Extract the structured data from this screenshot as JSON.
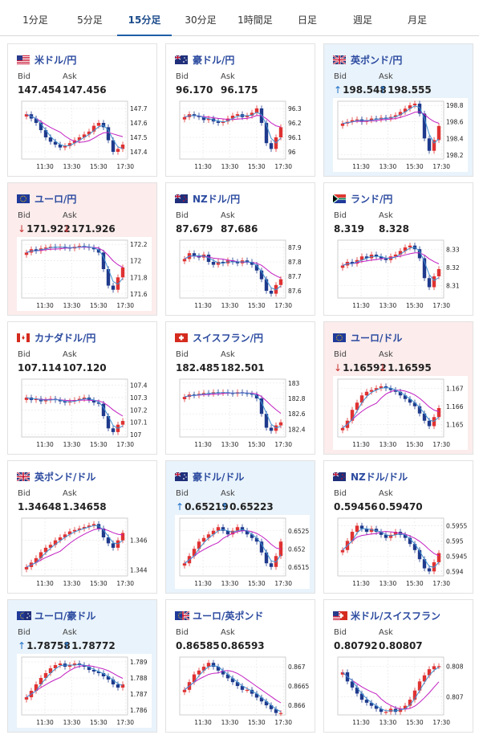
{
  "tabs": [
    {
      "label": "1分足",
      "active": false
    },
    {
      "label": "5分足",
      "active": false
    },
    {
      "label": "15分足",
      "active": true
    },
    {
      "label": "30分足",
      "active": false
    },
    {
      "label": "1時間足",
      "active": false
    },
    {
      "label": "日足",
      "active": false
    },
    {
      "label": "週足",
      "active": false
    },
    {
      "label": "月足",
      "active": false
    }
  ],
  "labels": {
    "bid": "Bid",
    "ask": "Ask"
  },
  "colors": {
    "up_candle": "#e03232",
    "down_candle": "#1f3a8c",
    "ma_short": "#3f8fd0",
    "ma_long": "#c21fc2",
    "arrow_up": "#1e6fc8",
    "arrow_down": "#c83232",
    "up_card_bg": "#e9f3fb",
    "down_card_bg": "#fcecec"
  },
  "cards": [
    {
      "pair": "米ドル/円",
      "flag": "us",
      "bid": "147.454",
      "ask": "147.456",
      "trend": "none",
      "chart_data": {
        "type": "candlestick",
        "x_ticks": [
          "11:30",
          "13:30",
          "15:30",
          "17:30"
        ],
        "y_ticks": [
          "147.7",
          "147.6",
          "147.5",
          "147.4"
        ],
        "ylim": [
          147.35,
          147.75
        ],
        "close": [
          147.66,
          147.63,
          147.6,
          147.55,
          147.5,
          147.47,
          147.45,
          147.43,
          147.44,
          147.46,
          147.48,
          147.5,
          147.52,
          147.54,
          147.58,
          147.6,
          147.57,
          147.48,
          147.4,
          147.42,
          147.45
        ]
      }
    },
    {
      "pair": "豪ドル/円",
      "flag": "au",
      "bid": "96.170",
      "ask": "96.175",
      "trend": "none",
      "chart_data": {
        "type": "candlestick",
        "x_ticks": [
          "11:30",
          "13:30",
          "15:30",
          "17:30"
        ],
        "y_ticks": [
          "96.3",
          "96.2",
          "96.1",
          "96"
        ],
        "ylim": [
          95.95,
          96.35
        ],
        "close": [
          96.24,
          96.26,
          96.25,
          96.24,
          96.22,
          96.23,
          96.21,
          96.2,
          96.21,
          96.23,
          96.25,
          96.26,
          96.24,
          96.25,
          96.27,
          96.3,
          96.2,
          96.06,
          96.02,
          96.1,
          96.17
        ]
      }
    },
    {
      "pair": "英ポンド/円",
      "flag": "uk",
      "bid": "198.548",
      "ask": "198.555",
      "trend": "up",
      "chart_data": {
        "type": "candlestick",
        "x_ticks": [
          "11:30",
          "13:30",
          "15:30",
          "17:30"
        ],
        "y_ticks": [
          "198.8",
          "198.6",
          "198.4",
          "198.2"
        ],
        "ylim": [
          198.15,
          198.85
        ],
        "close": [
          198.58,
          198.6,
          198.62,
          198.63,
          198.6,
          198.62,
          198.64,
          198.63,
          198.65,
          198.64,
          198.66,
          198.68,
          198.72,
          198.76,
          198.8,
          198.82,
          198.7,
          198.4,
          198.25,
          198.38,
          198.55
        ]
      }
    },
    {
      "pair": "ユーロ/円",
      "flag": "eu",
      "bid": "171.922",
      "ask": "171.926",
      "trend": "down",
      "chart_data": {
        "type": "candlestick",
        "x_ticks": [
          "11:30",
          "13:30",
          "15:30",
          "17:30"
        ],
        "y_ticks": [
          "172.2",
          "172",
          "171.8",
          "171.6"
        ],
        "ylim": [
          171.55,
          172.25
        ],
        "close": [
          172.1,
          172.14,
          172.12,
          172.15,
          172.16,
          172.17,
          172.16,
          172.17,
          172.16,
          172.15,
          172.17,
          172.18,
          172.17,
          172.16,
          172.14,
          172.1,
          171.9,
          171.7,
          171.65,
          171.8,
          171.92
        ]
      }
    },
    {
      "pair": "NZドル/円",
      "flag": "nz",
      "bid": "87.679",
      "ask": "87.686",
      "trend": "none",
      "chart_data": {
        "type": "candlestick",
        "x_ticks": [
          "11:30",
          "13:30",
          "15:30",
          "17:30"
        ],
        "y_ticks": [
          "87.9",
          "87.8",
          "87.7",
          "87.6"
        ],
        "ylim": [
          87.55,
          87.95
        ],
        "close": [
          87.82,
          87.86,
          87.84,
          87.83,
          87.85,
          87.8,
          87.78,
          87.8,
          87.79,
          87.81,
          87.8,
          87.79,
          87.81,
          87.8,
          87.78,
          87.74,
          87.68,
          87.6,
          87.58,
          87.64,
          87.68
        ]
      }
    },
    {
      "pair": "ランド/円",
      "flag": "za",
      "bid": "8.319",
      "ask": "8.328",
      "trend": "none",
      "chart_data": {
        "type": "candlestick",
        "x_ticks": [
          "11:30",
          "13:30",
          "15:30",
          "17:30"
        ],
        "y_ticks": [
          "8.33",
          "8.32",
          "8.31"
        ],
        "ylim": [
          8.303,
          8.335
        ],
        "close": [
          8.321,
          8.323,
          8.322,
          8.324,
          8.326,
          8.325,
          8.327,
          8.326,
          8.325,
          8.324,
          8.326,
          8.327,
          8.329,
          8.331,
          8.332,
          8.33,
          8.325,
          8.314,
          8.309,
          8.315,
          8.319
        ]
      }
    },
    {
      "pair": "カナダドル/円",
      "flag": "ca",
      "bid": "107.114",
      "ask": "107.120",
      "trend": "none",
      "chart_data": {
        "type": "candlestick",
        "x_ticks": [
          "11:30",
          "13:30",
          "15:30",
          "17:30"
        ],
        "y_ticks": [
          "107.4",
          "107.3",
          "107.2",
          "107.1",
          "107"
        ],
        "ylim": [
          106.98,
          107.45
        ],
        "close": [
          107.3,
          107.28,
          107.29,
          107.27,
          107.28,
          107.29,
          107.28,
          107.27,
          107.26,
          107.27,
          107.28,
          107.29,
          107.3,
          107.28,
          107.26,
          107.25,
          107.15,
          107.05,
          107.02,
          107.08,
          107.11
        ]
      }
    },
    {
      "pair": "スイスフラン/円",
      "flag": "ch",
      "bid": "182.485",
      "ask": "182.501",
      "trend": "none",
      "chart_data": {
        "type": "candlestick",
        "x_ticks": [
          "11:30",
          "13:30",
          "15:30",
          "17:30"
        ],
        "y_ticks": [
          "183",
          "182.8",
          "182.6",
          "182.4"
        ],
        "ylim": [
          182.3,
          183.05
        ],
        "close": [
          182.82,
          182.85,
          182.84,
          182.86,
          182.87,
          182.86,
          182.88,
          182.87,
          182.88,
          182.87,
          182.86,
          182.88,
          182.87,
          182.86,
          182.85,
          182.8,
          182.6,
          182.42,
          182.38,
          182.45,
          182.49
        ]
      }
    },
    {
      "pair": "ユーロ/ドル",
      "flag": "eu",
      "bid": "1.16592",
      "ask": "1.16595",
      "trend": "down",
      "chart_data": {
        "type": "candlestick",
        "x_ticks": [
          "11:30",
          "13:30",
          "15:30",
          "17:30"
        ],
        "y_ticks": [
          "1.167",
          "1.166",
          "1.165"
        ],
        "ylim": [
          1.1643,
          1.1675
        ],
        "close": [
          1.1648,
          1.1652,
          1.1658,
          1.1662,
          1.1666,
          1.1668,
          1.1669,
          1.167,
          1.1671,
          1.167,
          1.1669,
          1.1668,
          1.1666,
          1.1664,
          1.1662,
          1.166,
          1.1656,
          1.1652,
          1.1649,
          1.1654,
          1.1659
        ]
      }
    },
    {
      "pair": "英ポンド/ドル",
      "flag": "uk",
      "bid": "1.34648",
      "ask": "1.34658",
      "trend": "none",
      "chart_data": {
        "type": "candlestick",
        "x_ticks": [
          "11:30",
          "13:30",
          "15:30",
          "17:30"
        ],
        "y_ticks": [
          "1.346",
          "1.344"
        ],
        "ylim": [
          1.3436,
          1.3475
        ],
        "close": [
          1.3442,
          1.3445,
          1.3448,
          1.3452,
          1.3455,
          1.3457,
          1.346,
          1.3462,
          1.3464,
          1.3466,
          1.3467,
          1.3468,
          1.3469,
          1.347,
          1.3471,
          1.3468,
          1.3462,
          1.3458,
          1.3455,
          1.346,
          1.3465
        ]
      }
    },
    {
      "pair": "豪ドル/ドル",
      "flag": "au",
      "bid": "0.65219",
      "ask": "0.65223",
      "trend": "up",
      "chart_data": {
        "type": "candlestick",
        "x_ticks": [
          "11:30",
          "13:30",
          "15:30",
          "17:30"
        ],
        "y_ticks": [
          "0.6525",
          "0.652",
          "0.6515"
        ],
        "ylim": [
          0.65125,
          0.65285
        ],
        "close": [
          0.6516,
          0.6518,
          0.652,
          0.6522,
          0.6523,
          0.6524,
          0.6525,
          0.6526,
          0.6525,
          0.6524,
          0.6525,
          0.6526,
          0.6525,
          0.6524,
          0.6523,
          0.6522,
          0.6519,
          0.6516,
          0.6515,
          0.6518,
          0.6522
        ]
      }
    },
    {
      "pair": "NZドル/ドル",
      "flag": "nz",
      "bid": "0.59456",
      "ask": "0.59470",
      "trend": "none",
      "chart_data": {
        "type": "candlestick",
        "x_ticks": [
          "11:30",
          "13:30",
          "15:30",
          "17:30"
        ],
        "y_ticks": [
          "0.5955",
          "0.595",
          "0.5945",
          "0.594"
        ],
        "ylim": [
          0.59385,
          0.59575
        ],
        "close": [
          0.5947,
          0.595,
          0.5953,
          0.5955,
          0.5954,
          0.5953,
          0.5954,
          0.5953,
          0.5952,
          0.5951,
          0.5952,
          0.5953,
          0.5952,
          0.5951,
          0.5949,
          0.5947,
          0.5944,
          0.5941,
          0.594,
          0.5943,
          0.5946
        ]
      }
    },
    {
      "pair": "ユーロ/豪ドル",
      "flag": "eu-au",
      "bid": "1.78758",
      "ask": "1.78772",
      "trend": "up",
      "chart_data": {
        "type": "candlestick",
        "x_ticks": [
          "11:30",
          "13:30",
          "15:30",
          "17:30"
        ],
        "y_ticks": [
          "1.789",
          "1.788",
          "1.787",
          "1.786"
        ],
        "ylim": [
          1.7857,
          1.7893
        ],
        "close": [
          1.7868,
          1.7872,
          1.7876,
          1.788,
          1.7883,
          1.7886,
          1.7888,
          1.7889,
          1.7887,
          1.7888,
          1.7889,
          1.7888,
          1.7887,
          1.7885,
          1.7884,
          1.7883,
          1.7881,
          1.7879,
          1.7876,
          1.7874,
          1.7876
        ]
      }
    },
    {
      "pair": "ユーロ/英ポンド",
      "flag": "eu-uk",
      "bid": "0.86585",
      "ask": "0.86593",
      "trend": "none",
      "chart_data": {
        "type": "candlestick",
        "x_ticks": [
          "11:30",
          "13:30",
          "15:30",
          "17:30"
        ],
        "y_ticks": [
          "0.867",
          "0.8665",
          "0.866"
        ],
        "ylim": [
          0.86575,
          0.86725
        ],
        "close": [
          0.8664,
          0.8666,
          0.8668,
          0.8669,
          0.867,
          0.8671,
          0.867,
          0.8669,
          0.8668,
          0.8667,
          0.8666,
          0.8665,
          0.8664,
          0.8664,
          0.8663,
          0.8662,
          0.8661,
          0.866,
          0.8659,
          0.8658,
          0.8658
        ]
      }
    },
    {
      "pair": "米ドル/スイスフラン",
      "flag": "us-ch",
      "bid": "0.80792",
      "ask": "0.80807",
      "trend": "none",
      "chart_data": {
        "type": "candlestick",
        "x_ticks": [
          "11:30",
          "13:30",
          "15:30",
          "17:30"
        ],
        "y_ticks": [
          "0.808",
          "0.807"
        ],
        "ylim": [
          0.8064,
          0.8083
        ],
        "close": [
          0.8078,
          0.8075,
          0.8073,
          0.8071,
          0.8069,
          0.8068,
          0.8067,
          0.8066,
          0.8065,
          0.8065,
          0.8066,
          0.8065,
          0.8066,
          0.8067,
          0.8069,
          0.8072,
          0.8075,
          0.8077,
          0.8079,
          0.808,
          0.808
        ]
      }
    }
  ]
}
